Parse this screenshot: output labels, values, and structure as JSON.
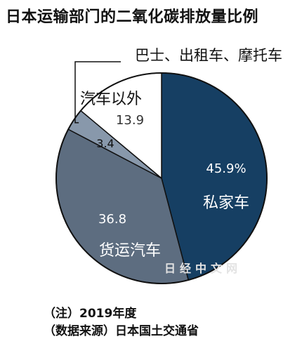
{
  "chart_data": {
    "type": "pie",
    "title": "日本运输部门的二氧化碳排放量比例",
    "slices": [
      {
        "name": "私家车",
        "value": 45.9,
        "value_label": "45.9%",
        "color": "#163f63"
      },
      {
        "name": "货运汽车",
        "value": 36.8,
        "value_label": "36.8",
        "color": "#5d6d80"
      },
      {
        "name": "巴士、出租车、摩托车",
        "value": 3.4,
        "value_label": "3.4",
        "color": "#8898ab"
      },
      {
        "name": "汽车以外",
        "value": 13.9,
        "value_label": "13.9",
        "color": "#ffffff"
      }
    ]
  },
  "notes": [
    "（注）2019年度",
    "（数据来源）日本国土交通省"
  ],
  "watermark": "日经中文网"
}
